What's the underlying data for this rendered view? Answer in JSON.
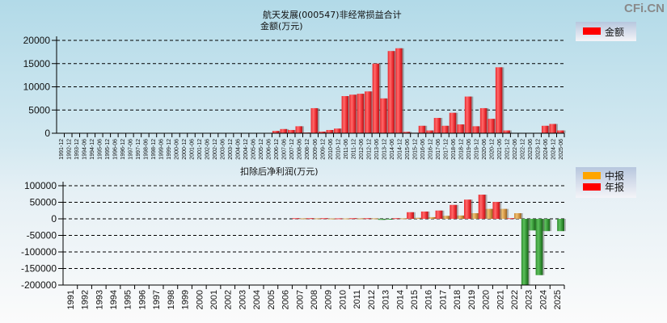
{
  "watermark": "CFi.CN",
  "chart_data": [
    {
      "type": "bar",
      "title": "航天发展(000547)非经常损益合计",
      "subtitle": "金额(万元)",
      "xlabel": "",
      "ylabel": "金额(万元)",
      "ylim": [
        0,
        20000
      ],
      "yticks": [
        0,
        5000,
        10000,
        15000,
        20000
      ],
      "grid": true,
      "legend": {
        "position": "top-right",
        "entries": [
          {
            "label": "金额",
            "color": "#ff0000"
          }
        ]
      },
      "categories": [
        "1991-12",
        "1992-12",
        "1993-12",
        "1994-06",
        "1994-12",
        "1995-06",
        "1995-12",
        "1996-06",
        "1996-12",
        "1997-06",
        "1997-12",
        "1998-06",
        "1998-12",
        "1999-06",
        "1999-12",
        "2000-06",
        "2000-12",
        "2001-06",
        "2001-12",
        "2002-06",
        "2002-12",
        "2003-06",
        "2003-12",
        "2004-06",
        "2004-12",
        "2005-06",
        "2005-12",
        "2006-06",
        "2006-12",
        "2007-06",
        "2007-12",
        "2008-06",
        "2008-12",
        "2009-06",
        "2009-12",
        "2010-06",
        "2010-12",
        "2011-06",
        "2011-12",
        "2012-06",
        "2012-12",
        "2013-06",
        "2013-12",
        "2014-06",
        "2014-12",
        "2015-06",
        "2015-12",
        "2016-06",
        "2016-12",
        "2017-06",
        "2017-12",
        "2018-06",
        "2018-12",
        "2019-06",
        "2019-12",
        "2020-06",
        "2020-12",
        "2021-06",
        "2021-12",
        "2022-06",
        "2022-12",
        "2023-06",
        "2023-12",
        "2024-06",
        "2024-12",
        "2025-06"
      ],
      "series": [
        {
          "name": "金额",
          "color": "#ff0000",
          "values": [
            0,
            0,
            0,
            0,
            0,
            0,
            0,
            0,
            0,
            0,
            0,
            0,
            0,
            0,
            0,
            0,
            0,
            0,
            0,
            0,
            0,
            0,
            0,
            0,
            0,
            0,
            0,
            0,
            500,
            900,
            700,
            1500,
            150,
            5400,
            350,
            700,
            1000,
            8000,
            8300,
            8500,
            9000,
            15000,
            7500,
            17700,
            18300,
            300,
            100,
            1600,
            600,
            3300,
            1600,
            4400,
            1900,
            7900,
            1500,
            5400,
            3100,
            14200,
            600,
            0,
            0,
            0,
            0,
            1600,
            2000,
            600
          ]
        }
      ]
    },
    {
      "type": "bar",
      "title": "扣除后净利润(万元)",
      "xlabel": "",
      "ylabel": "",
      "ylim": [
        -200000,
        100000
      ],
      "yticks": [
        100000,
        50000,
        0,
        -50000,
        -100000,
        -150000,
        -200000
      ],
      "grid": true,
      "legend": {
        "position": "top-right",
        "entries": [
          {
            "label": "中报",
            "color": "#ffa500"
          },
          {
            "label": "年报",
            "color": "#ff0000"
          }
        ]
      },
      "negative_color": "#2e8b2e",
      "categories": [
        "1991",
        "1992",
        "1993",
        "1994",
        "1995",
        "1996",
        "1997",
        "1998",
        "1999",
        "2000",
        "2001",
        "2002",
        "2003",
        "2004",
        "2005",
        "2006",
        "2007",
        "2008",
        "2009",
        "2010",
        "2011",
        "2012",
        "2013",
        "2014",
        "2015",
        "2016",
        "2017",
        "2018",
        "2019",
        "2020",
        "2021",
        "2022",
        "2023",
        "2024",
        "2025"
      ],
      "series": [
        {
          "name": "中报",
          "color": "#ffa500",
          "values": [
            null,
            null,
            null,
            null,
            null,
            null,
            null,
            null,
            null,
            null,
            null,
            null,
            null,
            null,
            null,
            null,
            1500,
            1500,
            1000,
            1200,
            1500,
            1500,
            -1500,
            1500,
            3000,
            5000,
            9000,
            10000,
            17000,
            30000,
            30000,
            17000,
            -35000,
            -37000,
            -37000
          ]
        },
        {
          "name": "年报",
          "color": "#ff0000",
          "values": [
            null,
            null,
            null,
            null,
            null,
            null,
            null,
            null,
            null,
            null,
            null,
            null,
            null,
            null,
            null,
            null,
            2000,
            2000,
            2000,
            1500,
            2000,
            2000,
            -3000,
            2000,
            20000,
            22000,
            25000,
            42000,
            58000,
            73000,
            51000,
            2000,
            -200000,
            -170000,
            null
          ]
        }
      ]
    }
  ]
}
